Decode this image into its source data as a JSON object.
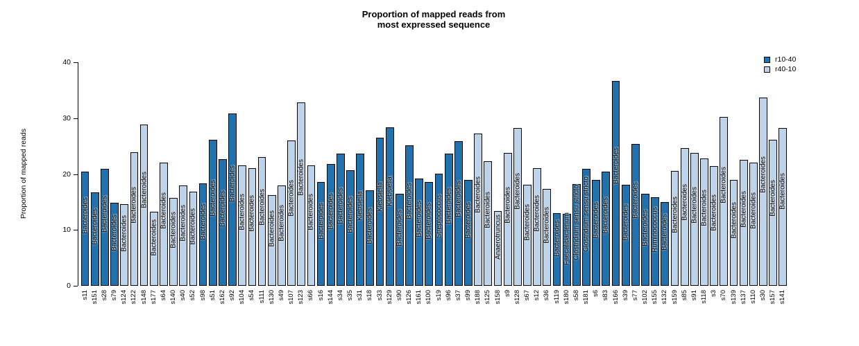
{
  "title": {
    "line1": "Proportion of mapped reads from",
    "line2": "most expressed sequence"
  },
  "y_axis": {
    "label": "Proportion of mapped reads",
    "ticks": [
      0,
      10,
      20,
      30,
      40
    ],
    "min": 0,
    "max": 40
  },
  "legend": [
    {
      "label": "r10-40",
      "color": "#2171ad"
    },
    {
      "label": "r40-10",
      "color": "#bdd3ea"
    }
  ],
  "colors": {
    "r10-40": "#2171ad",
    "r40-10": "#bdd3ea",
    "bar_border": "#000000",
    "text": "#000000"
  },
  "chart_data": {
    "type": "bar",
    "title": "Proportion of mapped reads from most expressed sequence",
    "xlabel": "",
    "ylabel": "Proportion of mapped reads",
    "ylim": [
      0,
      40
    ],
    "grid": false,
    "legend_position": "top-right",
    "series_legend": [
      "r10-40",
      "r40-10"
    ],
    "bars": [
      {
        "sample": "s11",
        "value": 20.5,
        "group": "r10-40",
        "taxon": "Bacteroides"
      },
      {
        "sample": "s151",
        "value": 16.7,
        "group": "r10-40",
        "taxon": "Bacteroides"
      },
      {
        "sample": "s28",
        "value": 20.9,
        "group": "r10-40",
        "taxon": "Bacteroides"
      },
      {
        "sample": "s79",
        "value": 14.9,
        "group": "r10-40",
        "taxon": "Bacteroides"
      },
      {
        "sample": "s124",
        "value": 14.6,
        "group": "r40-10",
        "taxon": "Bacteroides"
      },
      {
        "sample": "s122",
        "value": 23.9,
        "group": "r40-10",
        "taxon": "Bacteroides"
      },
      {
        "sample": "s148",
        "value": 28.9,
        "group": "r40-10",
        "taxon": "Bacteroides"
      },
      {
        "sample": "s177",
        "value": 13.3,
        "group": "r40-10",
        "taxon": "Bacteroides"
      },
      {
        "sample": "s64",
        "value": 22.0,
        "group": "r40-10",
        "taxon": "Bacteroides"
      },
      {
        "sample": "s140",
        "value": 15.7,
        "group": "r40-10",
        "taxon": "Bacteroides"
      },
      {
        "sample": "s40",
        "value": 18.0,
        "group": "r40-10",
        "taxon": "Bacteroides"
      },
      {
        "sample": "s52",
        "value": 16.9,
        "group": "r40-10",
        "taxon": "Bacteroides"
      },
      {
        "sample": "s98",
        "value": 18.3,
        "group": "r10-40",
        "taxon": "Bacteroides"
      },
      {
        "sample": "s51",
        "value": 26.2,
        "group": "r10-40",
        "taxon": "Bacteroides"
      },
      {
        "sample": "s162",
        "value": 22.7,
        "group": "r10-40",
        "taxon": "Bacteroides"
      },
      {
        "sample": "s92",
        "value": 30.8,
        "group": "r10-40",
        "taxon": "Bacteroides"
      },
      {
        "sample": "s104",
        "value": 21.6,
        "group": "r40-10",
        "taxon": "Bacteroides"
      },
      {
        "sample": "s54",
        "value": 21.1,
        "group": "r40-10",
        "taxon": "Bacteroides"
      },
      {
        "sample": "s111",
        "value": 23.1,
        "group": "r40-10",
        "taxon": "Bacteroides"
      },
      {
        "sample": "s130",
        "value": 16.2,
        "group": "r40-10",
        "taxon": "Bacteroides"
      },
      {
        "sample": "s49",
        "value": 18.0,
        "group": "r40-10",
        "taxon": "Bacteroides"
      },
      {
        "sample": "s107",
        "value": 26.0,
        "group": "r40-10",
        "taxon": "Bacteroides"
      },
      {
        "sample": "s123",
        "value": 32.8,
        "group": "r40-10",
        "taxon": "Bacteroides"
      },
      {
        "sample": "s66",
        "value": 21.5,
        "group": "r40-10",
        "taxon": "Bacteroides"
      },
      {
        "sample": "s16",
        "value": 18.6,
        "group": "r10-40",
        "taxon": "Bacteroides"
      },
      {
        "sample": "s144",
        "value": 21.8,
        "group": "r10-40",
        "taxon": "Bacteroides"
      },
      {
        "sample": "s34",
        "value": 23.7,
        "group": "r10-40",
        "taxon": "Bacteroides"
      },
      {
        "sample": "s35",
        "value": 20.7,
        "group": "r10-40",
        "taxon": "Bacteroides"
      },
      {
        "sample": "s31",
        "value": 23.7,
        "group": "r10-40",
        "taxon": "Klebsiella"
      },
      {
        "sample": "s18",
        "value": 17.1,
        "group": "r10-40",
        "taxon": "Bacteroides"
      },
      {
        "sample": "s33",
        "value": 26.5,
        "group": "r10-40",
        "taxon": "Klebsiella"
      },
      {
        "sample": "s129",
        "value": 28.4,
        "group": "r10-40",
        "taxon": "Klebsiella"
      },
      {
        "sample": "s90",
        "value": 16.5,
        "group": "r10-40",
        "taxon": "Bacteroides"
      },
      {
        "sample": "s126",
        "value": 25.2,
        "group": "r10-40",
        "taxon": "Bacteroides"
      },
      {
        "sample": "s161",
        "value": 19.2,
        "group": "r10-40",
        "taxon": "Bacteroides"
      },
      {
        "sample": "s100",
        "value": 18.6,
        "group": "r10-40",
        "taxon": "Bacteroides"
      },
      {
        "sample": "s19",
        "value": 20.1,
        "group": "r10-40",
        "taxon": "Streptococcus"
      },
      {
        "sample": "s96",
        "value": 23.7,
        "group": "r10-40",
        "taxon": "Bacteroides"
      },
      {
        "sample": "s37",
        "value": 25.9,
        "group": "r10-40",
        "taxon": "Bacteroides"
      },
      {
        "sample": "s99",
        "value": 19.0,
        "group": "r10-40",
        "taxon": "Bacteroides"
      },
      {
        "sample": "s188",
        "value": 27.2,
        "group": "r40-10",
        "taxon": "Bacteroides"
      },
      {
        "sample": "s125",
        "value": 22.3,
        "group": "r40-10",
        "taxon": "Bacteroides"
      },
      {
        "sample": "s158",
        "value": 13.4,
        "group": "r40-10",
        "taxon": "Anaerotruncus"
      },
      {
        "sample": "s9",
        "value": 23.8,
        "group": "r40-10",
        "taxon": "Bacteroides"
      },
      {
        "sample": "s128",
        "value": 28.2,
        "group": "r40-10",
        "taxon": "Bacteroides"
      },
      {
        "sample": "s67",
        "value": 18.1,
        "group": "r40-10",
        "taxon": "Bacteroides"
      },
      {
        "sample": "s12",
        "value": 21.1,
        "group": "r40-10",
        "taxon": "Bacteroides"
      },
      {
        "sample": "s36",
        "value": 17.3,
        "group": "r40-10",
        "taxon": "Bacteroides"
      },
      {
        "sample": "s119",
        "value": 13.0,
        "group": "r10-40",
        "taxon": "Bacteroides"
      },
      {
        "sample": "s180",
        "value": 12.9,
        "group": "r10-40",
        "taxon": "Faecalibacterium"
      },
      {
        "sample": "s58",
        "value": 18.2,
        "group": "r10-40",
        "taxon": "Clostridium sensu stricto"
      },
      {
        "sample": "s181",
        "value": 21.0,
        "group": "r10-40",
        "taxon": "Clostridium sensu stricto"
      },
      {
        "sample": "s6",
        "value": 19.0,
        "group": "r10-40",
        "taxon": "Bacteroides"
      },
      {
        "sample": "s83",
        "value": 20.5,
        "group": "r10-40",
        "taxon": "Bacteroides"
      },
      {
        "sample": "s166",
        "value": 36.7,
        "group": "r10-40",
        "taxon": "Bacteroides"
      },
      {
        "sample": "s39",
        "value": 18.1,
        "group": "r10-40",
        "taxon": "Bacteroides"
      },
      {
        "sample": "s77",
        "value": 25.4,
        "group": "r10-40",
        "taxon": "Bacteroides"
      },
      {
        "sample": "s102",
        "value": 16.5,
        "group": "r10-40",
        "taxon": "Bacteroides"
      },
      {
        "sample": "s155",
        "value": 15.9,
        "group": "r10-40",
        "taxon": "Ruminococcus"
      },
      {
        "sample": "s132",
        "value": 15.0,
        "group": "r10-40",
        "taxon": "Bacteroides"
      },
      {
        "sample": "s159",
        "value": 20.6,
        "group": "r40-10",
        "taxon": "Bacteroides"
      },
      {
        "sample": "s85",
        "value": 24.6,
        "group": "r40-10",
        "taxon": "Bacteroides"
      },
      {
        "sample": "s91",
        "value": 23.8,
        "group": "r40-10",
        "taxon": "Bacteroides"
      },
      {
        "sample": "s118",
        "value": 22.8,
        "group": "r40-10",
        "taxon": "Bacteroides"
      },
      {
        "sample": "s3",
        "value": 21.4,
        "group": "r40-10",
        "taxon": "Bacteroides"
      },
      {
        "sample": "s70",
        "value": 30.2,
        "group": "r40-10",
        "taxon": "Bacteroides"
      },
      {
        "sample": "s139",
        "value": 19.0,
        "group": "r40-10",
        "taxon": "Bacteroides"
      },
      {
        "sample": "s137",
        "value": 22.5,
        "group": "r40-10",
        "taxon": "Bacteroides"
      },
      {
        "sample": "s110",
        "value": 22.1,
        "group": "r40-10",
        "taxon": "Bacteroides"
      },
      {
        "sample": "s30",
        "value": 33.7,
        "group": "r40-10",
        "taxon": "Bacteroides"
      },
      {
        "sample": "s157",
        "value": 26.1,
        "group": "r40-10",
        "taxon": "Bacteroides"
      },
      {
        "sample": "s141",
        "value": 28.2,
        "group": "r40-10",
        "taxon": "Bacteroides"
      }
    ]
  }
}
